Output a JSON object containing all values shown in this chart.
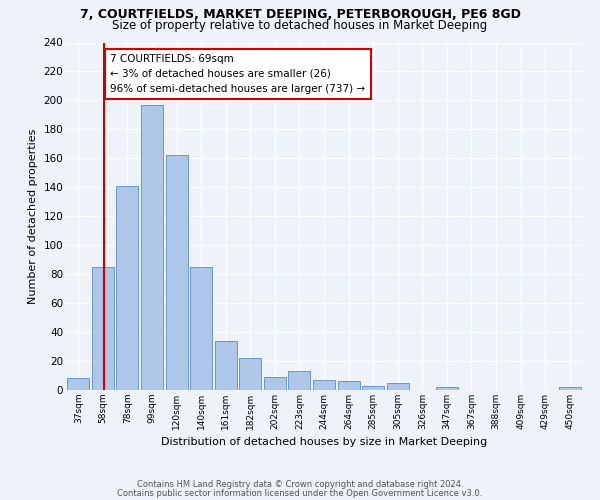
{
  "title1": "7, COURTFIELDS, MARKET DEEPING, PETERBOROUGH, PE6 8GD",
  "title2": "Size of property relative to detached houses in Market Deeping",
  "xlabel": "Distribution of detached houses by size in Market Deeping",
  "ylabel": "Number of detached properties",
  "categories": [
    "37sqm",
    "58sqm",
    "78sqm",
    "99sqm",
    "120sqm",
    "140sqm",
    "161sqm",
    "182sqm",
    "202sqm",
    "223sqm",
    "244sqm",
    "264sqm",
    "285sqm",
    "305sqm",
    "326sqm",
    "347sqm",
    "367sqm",
    "388sqm",
    "409sqm",
    "429sqm",
    "450sqm"
  ],
  "values": [
    8,
    85,
    141,
    197,
    162,
    85,
    34,
    22,
    9,
    13,
    7,
    6,
    3,
    5,
    0,
    2,
    0,
    0,
    0,
    0,
    2
  ],
  "bar_color": "#aec6e8",
  "bar_edge_color": "#5b8ec4",
  "marker_line_color": "#cc0000",
  "annotation_text": "7 COURTFIELDS: 69sqm\n← 3% of detached houses are smaller (26)\n96% of semi-detached houses are larger (737) →",
  "annotation_box_color": "#ffffff",
  "annotation_box_edge": "#cc0000",
  "ylim": [
    0,
    240
  ],
  "yticks": [
    0,
    20,
    40,
    60,
    80,
    100,
    120,
    140,
    160,
    180,
    200,
    220,
    240
  ],
  "footer1": "Contains HM Land Registry data © Crown copyright and database right 2024.",
  "footer2": "Contains public sector information licensed under the Open Government Licence v3.0.",
  "bg_color": "#eef2f9",
  "grid_color": "#ffffff"
}
